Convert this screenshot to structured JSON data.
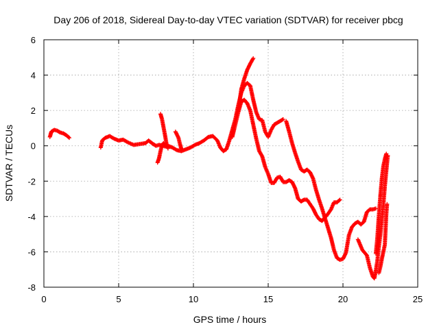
{
  "chart_data": {
    "type": "scatter",
    "title": "Day 206 of 2018, Sidereal Day-to-day VTEC variation (SDTVAR) for receiver pbcg",
    "xlabel": "GPS time / hours",
    "ylabel": "SDTVAR / TECUs",
    "xlim": [
      0,
      25
    ],
    "ylim": [
      -8,
      6
    ],
    "xticks": [
      "0",
      "5",
      "10",
      "15",
      "20",
      "25"
    ],
    "yticks": [
      "-8",
      "-6",
      "-4",
      "-2",
      "0",
      "2",
      "4",
      "6"
    ],
    "grid": true,
    "marker": "+",
    "color": "#ff0000",
    "tracks": [
      [
        [
          0.4,
          0.5
        ],
        [
          0.5,
          0.8
        ],
        [
          0.7,
          0.9
        ],
        [
          0.9,
          0.85
        ],
        [
          1.1,
          0.75
        ],
        [
          1.3,
          0.7
        ],
        [
          1.5,
          0.6
        ],
        [
          1.7,
          0.45
        ]
      ],
      [
        [
          3.8,
          -0.1
        ],
        [
          3.9,
          0.3
        ],
        [
          4.1,
          0.45
        ],
        [
          4.4,
          0.55
        ],
        [
          4.7,
          0.4
        ],
        [
          5.0,
          0.3
        ],
        [
          5.3,
          0.35
        ],
        [
          5.6,
          0.2
        ],
        [
          6.0,
          0.05
        ],
        [
          6.4,
          0.1
        ],
        [
          6.8,
          0.15
        ],
        [
          7.0,
          0.3
        ],
        [
          7.3,
          0.1
        ],
        [
          7.5,
          0.0
        ],
        [
          7.7,
          0.05
        ],
        [
          8.0,
          0.0
        ],
        [
          8.3,
          0.0
        ],
        [
          8.6,
          -0.1
        ],
        [
          8.9,
          -0.25
        ],
        [
          9.2,
          -0.3
        ],
        [
          9.5,
          -0.2
        ],
        [
          9.8,
          -0.1
        ],
        [
          10.1,
          0.05
        ],
        [
          10.4,
          0.15
        ],
        [
          10.7,
          0.3
        ],
        [
          11.0,
          0.5
        ],
        [
          11.3,
          0.55
        ],
        [
          11.6,
          0.3
        ],
        [
          11.8,
          -0.1
        ],
        [
          12.0,
          -0.3
        ],
        [
          12.2,
          -0.2
        ],
        [
          12.4,
          0.3
        ],
        [
          12.6,
          0.9
        ],
        [
          12.8,
          1.5
        ],
        [
          13.0,
          2.3
        ],
        [
          13.2,
          3.0
        ],
        [
          13.4,
          3.4
        ],
        [
          13.6,
          3.55
        ],
        [
          13.8,
          3.4
        ],
        [
          14.0,
          2.6
        ],
        [
          14.2,
          1.9
        ],
        [
          14.4,
          1.5
        ],
        [
          14.6,
          1.45
        ],
        [
          14.8,
          0.8
        ],
        [
          15.0,
          0.5
        ],
        [
          15.2,
          0.9
        ],
        [
          15.4,
          1.2
        ],
        [
          15.6,
          1.3
        ],
        [
          15.8,
          1.4
        ],
        [
          16.0,
          1.5
        ]
      ],
      [
        [
          12.6,
          0.5
        ],
        [
          12.8,
          1.2
        ],
        [
          13.0,
          1.9
        ],
        [
          13.2,
          2.5
        ],
        [
          13.4,
          2.6
        ],
        [
          13.6,
          2.4
        ],
        [
          13.8,
          2.0
        ],
        [
          14.0,
          1.2
        ],
        [
          14.2,
          0.4
        ],
        [
          14.4,
          -0.3
        ],
        [
          14.6,
          -0.6
        ],
        [
          14.8,
          -1.2
        ],
        [
          15.0,
          -1.6
        ],
        [
          15.2,
          -2.1
        ],
        [
          15.4,
          -2.1
        ],
        [
          15.6,
          -1.8
        ],
        [
          15.8,
          -1.75
        ],
        [
          16.0,
          -2.05
        ],
        [
          16.2,
          -2.05
        ],
        [
          16.4,
          -1.95
        ],
        [
          16.6,
          -2.05
        ],
        [
          16.8,
          -2.4
        ],
        [
          17.0,
          -3.0
        ],
        [
          17.2,
          -3.15
        ],
        [
          17.4,
          -3.05
        ],
        [
          17.6,
          -3.05
        ],
        [
          17.8,
          -3.3
        ],
        [
          18.0,
          -3.55
        ],
        [
          18.2,
          -3.9
        ],
        [
          18.4,
          -4.15
        ],
        [
          18.6,
          -4.25
        ],
        [
          18.8,
          -4.05
        ],
        [
          19.0,
          -3.85
        ],
        [
          19.2,
          -3.6
        ],
        [
          19.4,
          -3.2
        ],
        [
          19.6,
          -3.2
        ],
        [
          19.8,
          -3.05
        ]
      ],
      [
        [
          13.0,
          2.0
        ],
        [
          13.2,
          3.2
        ],
        [
          13.4,
          3.8
        ],
        [
          13.6,
          4.3
        ],
        [
          13.8,
          4.65
        ],
        [
          14.0,
          4.95
        ]
      ],
      [
        [
          16.2,
          1.4
        ],
        [
          16.4,
          0.8
        ],
        [
          16.6,
          0.15
        ],
        [
          16.8,
          -0.4
        ],
        [
          17.0,
          -0.9
        ],
        [
          17.2,
          -1.35
        ],
        [
          17.4,
          -1.45
        ],
        [
          17.6,
          -1.35
        ],
        [
          17.8,
          -1.5
        ],
        [
          18.0,
          -1.85
        ],
        [
          18.2,
          -2.5
        ],
        [
          18.4,
          -3.05
        ],
        [
          18.6,
          -3.55
        ],
        [
          18.8,
          -4.1
        ],
        [
          19.0,
          -4.65
        ],
        [
          19.2,
          -5.2
        ],
        [
          19.4,
          -5.9
        ],
        [
          19.6,
          -6.35
        ],
        [
          19.8,
          -6.45
        ],
        [
          20.0,
          -6.4
        ],
        [
          20.2,
          -6.05
        ],
        [
          20.4,
          -5.05
        ],
        [
          20.6,
          -4.6
        ],
        [
          20.8,
          -4.4
        ],
        [
          21.0,
          -4.3
        ],
        [
          21.2,
          -4.45
        ],
        [
          21.4,
          -4.3
        ],
        [
          21.6,
          -3.75
        ],
        [
          21.8,
          -3.6
        ],
        [
          22.0,
          -3.6
        ],
        [
          22.2,
          -3.55
        ]
      ],
      [
        [
          21.0,
          -5.3
        ],
        [
          21.3,
          -5.9
        ],
        [
          21.6,
          -6.2
        ],
        [
          21.8,
          -6.9
        ],
        [
          22.0,
          -7.4
        ],
        [
          22.1,
          -7.5
        ],
        [
          22.2,
          -7.05
        ],
        [
          22.3,
          -6.5
        ],
        [
          22.4,
          -5.7
        ],
        [
          22.5,
          -5.05
        ],
        [
          22.6,
          -4.15
        ],
        [
          22.7,
          -3.35
        ],
        [
          22.8,
          -2.3
        ],
        [
          22.9,
          -1.4
        ],
        [
          23.0,
          -0.55
        ]
      ],
      [
        [
          22.2,
          -6.1
        ],
        [
          22.3,
          -5.2
        ],
        [
          22.4,
          -3.95
        ],
        [
          22.5,
          -2.85
        ],
        [
          22.6,
          -1.85
        ],
        [
          22.7,
          -1.15
        ],
        [
          22.8,
          -0.75
        ],
        [
          22.9,
          -0.45
        ]
      ],
      [
        [
          22.4,
          -7.2
        ],
        [
          22.5,
          -6.85
        ],
        [
          22.6,
          -6.4
        ],
        [
          22.7,
          -6.0
        ],
        [
          22.8,
          -5.6
        ],
        [
          22.9,
          -3.85
        ],
        [
          22.95,
          -3.3
        ]
      ],
      [
        [
          7.6,
          -0.95
        ],
        [
          7.7,
          -0.7
        ],
        [
          7.8,
          -0.3
        ],
        [
          7.9,
          0.05
        ],
        [
          8.0,
          0.15
        ],
        [
          8.1,
          -0.05
        ]
      ],
      [
        [
          7.8,
          1.8
        ],
        [
          7.9,
          1.5
        ],
        [
          8.0,
          1.05
        ],
        [
          8.1,
          0.6
        ],
        [
          8.2,
          0.1
        ],
        [
          8.3,
          -0.15
        ]
      ],
      [
        [
          8.8,
          0.8
        ],
        [
          9.0,
          0.45
        ],
        [
          9.1,
          0.1
        ],
        [
          9.2,
          -0.2
        ]
      ]
    ]
  }
}
